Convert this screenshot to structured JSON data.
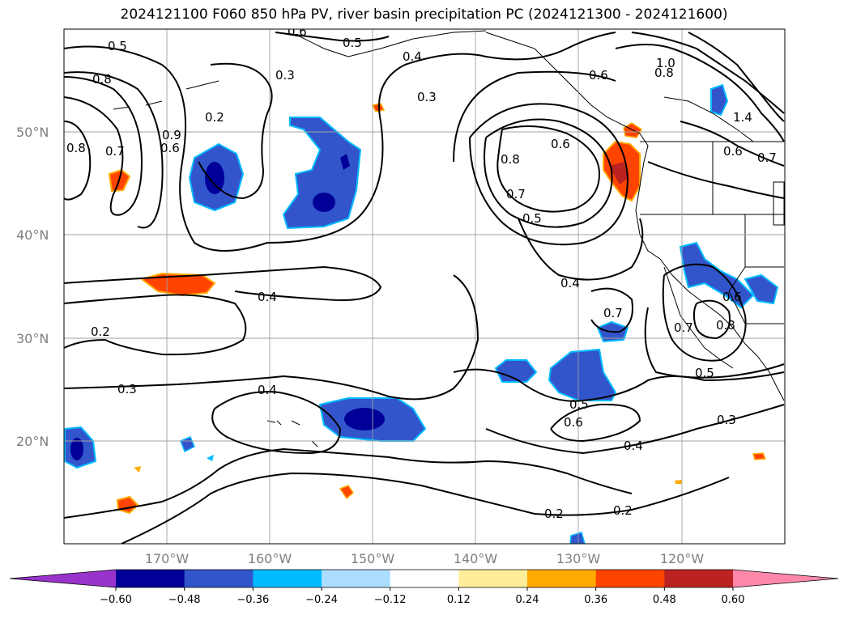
{
  "title": "2024121100 F060 850 hPa PV, river basin precipitation PC (2024121300 - 2024121600)",
  "lat_labels": [
    "50°N",
    "40°N",
    "30°N",
    "20°N"
  ],
  "lon_labels": [
    "170°W",
    "160°W",
    "150°W",
    "140°W",
    "130°W",
    "120°W"
  ],
  "contour_labels": [
    "0.6",
    "0.5",
    "0.4",
    "0.3",
    "0.2",
    "0.8",
    "0.7",
    "0.9",
    "0.6",
    "0.8",
    "0.7",
    "0.5",
    "0.4",
    "0.3",
    "0.2",
    "0.3",
    "0.4",
    "0.4",
    "0.5",
    "0.6",
    "0.4",
    "0.3",
    "0.2",
    "0.2",
    "0.5",
    "0.6",
    "0.7",
    "0.8",
    "1.0",
    "0.8",
    "1.4",
    "0.6",
    "0.7",
    "0.6",
    "0.8",
    "0.7",
    "0.6",
    "0.5"
  ],
  "colorbar": {
    "ticks": [
      "−0.60",
      "−0.48",
      "−0.36",
      "−0.24",
      "−0.12",
      "0.12",
      "0.24",
      "0.36",
      "0.48",
      "0.60"
    ],
    "colors": [
      "#9933cc",
      "#000099",
      "#3355cc",
      "#00bbff",
      "#aaddff",
      "#ffffff",
      "#ffee99",
      "#ffaa00",
      "#ff4400",
      "#bb2222",
      "#ff88aa"
    ]
  }
}
